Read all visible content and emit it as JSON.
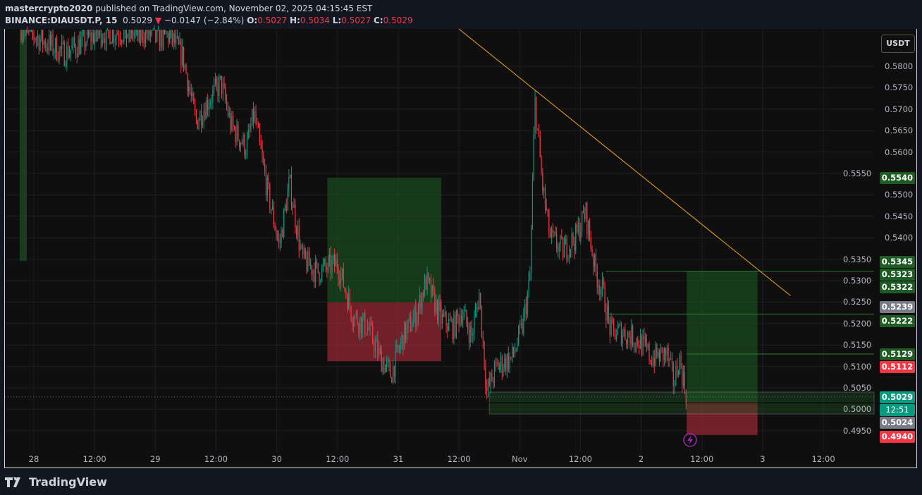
{
  "header": {
    "author": "mastercrypto2020",
    "published_text": "published on TradingView.com, November 02, 2025 04:15:45 EST",
    "symbol": "BINANCE:DIAUSDT.P, 15",
    "last": "0.5029",
    "change": "−0.0147 (−2.84%)",
    "open": "0.5027",
    "high": "0.5034",
    "low": "0.5027",
    "close": "0.5029",
    "o_label": "O:",
    "h_label": "H:",
    "l_label": "L:",
    "c_label": "C:"
  },
  "currency": "USDT",
  "logo_text": "TradingView",
  "colors": {
    "up": "#089981",
    "down": "#f23645",
    "trendline": "#f7a21b",
    "target": "#1e5c23",
    "stop": "#f23645",
    "grey": "#787b86"
  },
  "chart_data": {
    "type": "candlestick",
    "interval": "15",
    "ylim": [
      0.49,
      0.5887
    ],
    "y_ticks": [
      "0.5800",
      "0.5750",
      "0.5700",
      "0.5650",
      "0.5600",
      "0.5550",
      "0.5500",
      "0.5450",
      "0.5400",
      "0.5350",
      "0.5300",
      "0.5250",
      "0.5200",
      "0.5150",
      "0.5100",
      "0.5050",
      "0.5000",
      "0.4950"
    ],
    "x_ticks": [
      "28",
      "12:00",
      "29",
      "12:00",
      "30",
      "12:00",
      "31",
      "12:00",
      "Nov",
      "12:00",
      "2",
      "12:00",
      "3",
      "12:00"
    ],
    "price_path": [
      [
        "10-27 21:30",
        0.589
      ],
      [
        "10-28 06:00",
        0.583
      ],
      [
        "10-28 13:00",
        0.588
      ],
      [
        "10-28 21:00",
        0.588
      ],
      [
        "10-29 03:00",
        0.587
      ],
      [
        "10-29 05:30",
        0.582
      ],
      [
        "10-29 08:00",
        0.567
      ],
      [
        "10-29 11:00",
        0.573
      ],
      [
        "10-29 13:00",
        0.576
      ],
      [
        "10-29 15:00",
        0.566
      ],
      [
        "10-29 18:00",
        0.561
      ],
      [
        "10-29 19:30",
        0.569
      ],
      [
        "10-29 22:00",
        0.552
      ],
      [
        "10-30 00:30",
        0.538
      ],
      [
        "10-30 02:30",
        0.553
      ],
      [
        "10-30 05:00",
        0.535
      ],
      [
        "10-30 08:00",
        0.532
      ],
      [
        "10-30 12:00",
        0.534
      ],
      [
        "10-30 15:00",
        0.522
      ],
      [
        "10-30 18:00",
        0.519
      ],
      [
        "10-30 20:30",
        0.512
      ],
      [
        "10-30 22:30",
        0.508
      ],
      [
        "10-31 01:00",
        0.517
      ],
      [
        "10-31 03:30",
        0.522
      ],
      [
        "10-31 05:30",
        0.53
      ],
      [
        "10-31 08:30",
        0.521
      ],
      [
        "10-31 11:00",
        0.519
      ],
      [
        "10-31 12:30",
        0.523
      ],
      [
        "10-31 14:30",
        0.517
      ],
      [
        "10-31 16:00",
        0.527
      ],
      [
        "10-31 17:30",
        0.504
      ],
      [
        "10-31 19:30",
        0.51
      ],
      [
        "10-31 22:30",
        0.512
      ],
      [
        "11-01 00:30",
        0.519
      ],
      [
        "11-01 02:00",
        0.53
      ],
      [
        "11-01 03:00",
        0.572
      ],
      [
        "11-01 04:30",
        0.552
      ],
      [
        "11-01 06:00",
        0.54
      ],
      [
        "11-01 08:30",
        0.537
      ],
      [
        "11-01 11:00",
        0.54
      ],
      [
        "11-01 13:00",
        0.546
      ],
      [
        "11-01 15:00",
        0.532
      ],
      [
        "11-01 16:30",
        0.527
      ],
      [
        "11-01 18:00",
        0.518
      ],
      [
        "11-01 20:30",
        0.518
      ],
      [
        "11-01 23:30",
        0.516
      ],
      [
        "11-02 02:00",
        0.512
      ],
      [
        "11-02 05:00",
        0.513
      ],
      [
        "11-02 06:30",
        0.506
      ],
      [
        "11-02 07:30",
        0.512
      ],
      [
        "11-02 09:00",
        0.5029
      ]
    ],
    "trendline": [
      [
        "10-31 12:00",
        0.5887
      ],
      [
        "11-03 05:30",
        0.5265
      ]
    ],
    "positions": [
      {
        "start": "10-30 10:00",
        "end": "10-31 08:30",
        "entry": 0.5249,
        "target": 0.554,
        "stop": 0.5112
      },
      {
        "start": "11-02 09:00",
        "end": "11-02 23:00",
        "entry": 0.5018,
        "target": 0.5322,
        "stop": 0.494
      }
    ],
    "levels": [
      {
        "from": "11-01 17:00",
        "price": 0.5322
      },
      {
        "from": "11-01 17:30",
        "price": 0.5222
      },
      {
        "from": "11-02 09:00",
        "price": 0.5129
      }
    ],
    "range_box": {
      "from": "10-31 18:00",
      "top": 0.504,
      "bottom": 0.4989,
      "mid": 0.5015
    },
    "price_labels": [
      {
        "text": "0.5540",
        "price": 0.554,
        "color": "#1e5c23"
      },
      {
        "text": "0.5345",
        "price": 0.5345,
        "color": "#1e5c23"
      },
      {
        "text": "0.5323",
        "price": 0.5323,
        "color": "#1e5c23"
      },
      {
        "text": "0.5322",
        "price": 0.5301,
        "color": "#1e5c23"
      },
      {
        "text": "0.5239",
        "price": 0.5239,
        "color": "#787b86"
      },
      {
        "text": "0.5222",
        "price": 0.5206,
        "color": "#1e5c23"
      },
      {
        "text": "0.5129",
        "price": 0.5129,
        "color": "#1e5c23"
      },
      {
        "text": "0.5112",
        "price": 0.5101,
        "color": "#f23645"
      },
      {
        "text": "0.5024",
        "price": 0.4979,
        "color": "#787b86"
      },
      {
        "text": "0.4940",
        "price": 0.4937,
        "color": "#f23645"
      }
    ],
    "last_price": {
      "text": "0.5029",
      "countdown": "12:51",
      "price": 0.5029,
      "color": "#089981"
    }
  }
}
